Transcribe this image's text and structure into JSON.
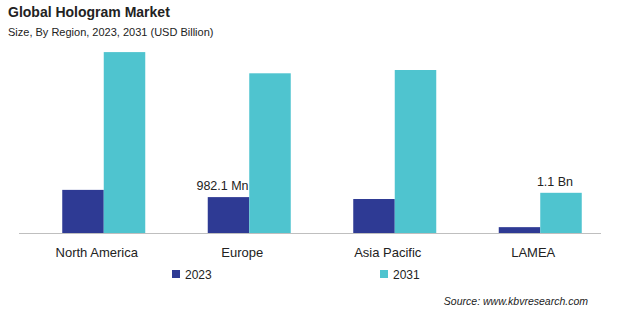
{
  "chart_data": {
    "type": "bar",
    "title": "Global Hologram Market",
    "subtitle": "Size, By Region, 2023, 2031 (USD Billion)",
    "source": "Source: www.kbvresearch.com",
    "categories": [
      "North America",
      "Europe",
      "Asia Pacific",
      "LAMEA"
    ],
    "series": [
      {
        "name": "2023",
        "color": "#2e3a94",
        "values": [
          1.18,
          0.9821,
          0.93,
          0.16
        ],
        "value_labels": [
          null,
          "982.1 Mn",
          null,
          null
        ]
      },
      {
        "name": "2031",
        "color": "#4fc4cf",
        "values": [
          4.95,
          4.37,
          4.46,
          1.1
        ],
        "value_labels": [
          null,
          null,
          null,
          "1.1 Bn"
        ]
      }
    ],
    "ylim": [
      0,
      5.5
    ],
    "grid": false,
    "legend": "bottom",
    "data_labels": true,
    "tick_labels": "x"
  }
}
